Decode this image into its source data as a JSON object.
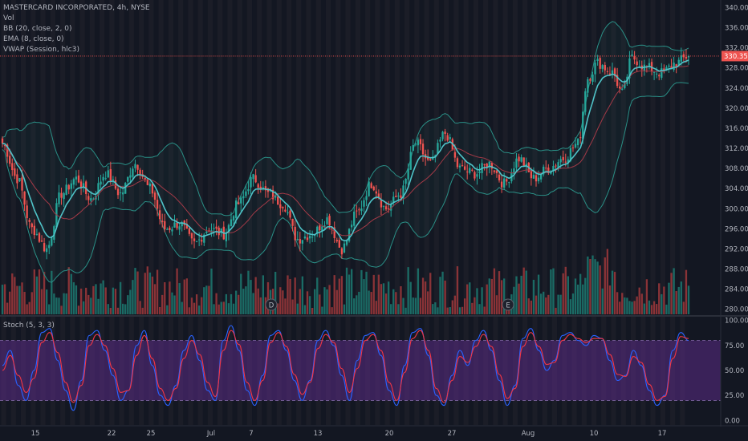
{
  "legend": {
    "symbol": "MASTERCARD INCORPORATED, 4h, NYSE",
    "vol": "Vol",
    "bb": "BB (20, close, 2, 0)",
    "ema": "EMA (8, close, 0)",
    "vwap": "VWAP (Session, hlc3)",
    "stoch": "Stoch (5, 3, 3)"
  },
  "markers": {
    "dividend": "D",
    "earnings": "E"
  },
  "colors": {
    "background": "#131722",
    "up": "#26a69a",
    "down": "#ef5350",
    "up_volume": "#1b6b65",
    "down_volume": "#8a3337",
    "bollinger": "#2a8f86",
    "ema": "#4fc3c8",
    "vwap": "#a33a47",
    "stoch_k": "#2962ff",
    "stoch_d": "#f23645",
    "stoch_band": "#5b2b86",
    "session_stripe": "#23232c",
    "price_tag": "#ef5350"
  },
  "chart_data": [
    {
      "type": "candlestick",
      "title": "MASTERCARD INCORPORATED, 4h, NYSE",
      "x_ticks": [
        "15",
        "22",
        "25",
        "Jul",
        "7",
        "13",
        "20",
        "27",
        "Aug",
        "10",
        "17"
      ],
      "y_ticks": [
        "280.00",
        "284.00",
        "288.00",
        "292.00",
        "296.00",
        "300.00",
        "304.00",
        "308.00",
        "312.00",
        "316.00",
        "320.00",
        "324.00",
        "328.00",
        "332.00",
        "336.00",
        "340.00"
      ],
      "ylim": [
        279.0,
        341.5
      ],
      "last_price": "330.35",
      "overlays": [
        "Bollinger Bands (20, close, 2)",
        "EMA 8",
        "VWAP"
      ],
      "volume_shown": true,
      "close_path": [
        {
          "x": 0,
          "close": 313
        },
        {
          "x": 6,
          "close": 306
        },
        {
          "x": 12,
          "close": 296
        },
        {
          "x": 18,
          "close": 292
        },
        {
          "x": 24,
          "close": 303
        },
        {
          "x": 30,
          "close": 306
        },
        {
          "x": 36,
          "close": 302
        },
        {
          "x": 42,
          "close": 307
        },
        {
          "x": 48,
          "close": 303
        },
        {
          "x": 54,
          "close": 309
        },
        {
          "x": 60,
          "close": 304
        },
        {
          "x": 66,
          "close": 296
        },
        {
          "x": 72,
          "close": 297
        },
        {
          "x": 78,
          "close": 293
        },
        {
          "x": 84,
          "close": 296
        },
        {
          "x": 90,
          "close": 295
        },
        {
          "x": 96,
          "close": 301
        },
        {
          "x": 102,
          "close": 306
        },
        {
          "x": 108,
          "close": 303
        },
        {
          "x": 114,
          "close": 301
        },
        {
          "x": 120,
          "close": 294
        },
        {
          "x": 126,
          "close": 295
        },
        {
          "x": 132,
          "close": 298
        },
        {
          "x": 138,
          "close": 292
        },
        {
          "x": 144,
          "close": 299
        },
        {
          "x": 150,
          "close": 305
        },
        {
          "x": 156,
          "close": 300
        },
        {
          "x": 162,
          "close": 303
        },
        {
          "x": 168,
          "close": 313
        },
        {
          "x": 174,
          "close": 309
        },
        {
          "x": 180,
          "close": 315
        },
        {
          "x": 186,
          "close": 308
        },
        {
          "x": 192,
          "close": 307
        },
        {
          "x": 198,
          "close": 309
        },
        {
          "x": 204,
          "close": 305
        },
        {
          "x": 210,
          "close": 310
        },
        {
          "x": 216,
          "close": 306
        },
        {
          "x": 222,
          "close": 308
        },
        {
          "x": 228,
          "close": 310
        },
        {
          "x": 234,
          "close": 313
        },
        {
          "x": 238,
          "close": 326
        },
        {
          "x": 242,
          "close": 329
        },
        {
          "x": 248,
          "close": 327
        },
        {
          "x": 252,
          "close": 323
        },
        {
          "x": 256,
          "close": 330
        },
        {
          "x": 262,
          "close": 328
        },
        {
          "x": 268,
          "close": 327
        },
        {
          "x": 274,
          "close": 329
        },
        {
          "x": 279,
          "close": 330.35
        }
      ]
    },
    {
      "type": "line",
      "title": "Stoch (5, 3, 3)",
      "y_ticks": [
        "0.00",
        "25.00",
        "50.00",
        "75.00",
        "100.00"
      ],
      "ylim": [
        -3,
        103
      ],
      "band": [
        20,
        80
      ],
      "series": [
        {
          "values": [
            55,
            70,
            35,
            20,
            50,
            88,
            92,
            60,
            30,
            10,
            40,
            85,
            90,
            70,
            45,
            20,
            30,
            75,
            90,
            55,
            25,
            15,
            35,
            70,
            85,
            60,
            30,
            20,
            80,
            95,
            70,
            30,
            15,
            45,
            85,
            90,
            70,
            40,
            20,
            40,
            80,
            90,
            75,
            45,
            20,
            60,
            85,
            88,
            65,
            30,
            15,
            55,
            88,
            92,
            65,
            25,
            15,
            45,
            70,
            55,
            80,
            90,
            70,
            40,
            15,
            35,
            82,
            92,
            70,
            50,
            60,
            85,
            88,
            80,
            75,
            85,
            82,
            60,
            40,
            45,
            70,
            55,
            30,
            15,
            25,
            70,
            88,
            80
          ]
        },
        {
          "values": [
            50,
            65,
            45,
            28,
            42,
            78,
            88,
            68,
            38,
            18,
            35,
            75,
            86,
            75,
            52,
            28,
            30,
            65,
            85,
            62,
            32,
            20,
            32,
            62,
            80,
            66,
            38,
            24,
            70,
            90,
            76,
            38,
            20,
            40,
            78,
            88,
            74,
            46,
            26,
            38,
            72,
            86,
            78,
            52,
            28,
            52,
            80,
            86,
            70,
            38,
            20,
            48,
            82,
            90,
            70,
            32,
            18,
            40,
            64,
            58,
            74,
            86,
            74,
            46,
            22,
            32,
            74,
            88,
            74,
            56,
            58,
            80,
            86,
            82,
            78,
            82,
            82,
            66,
            46,
            44,
            64,
            58,
            36,
            20,
            24,
            62,
            84,
            82
          ]
        }
      ]
    }
  ]
}
